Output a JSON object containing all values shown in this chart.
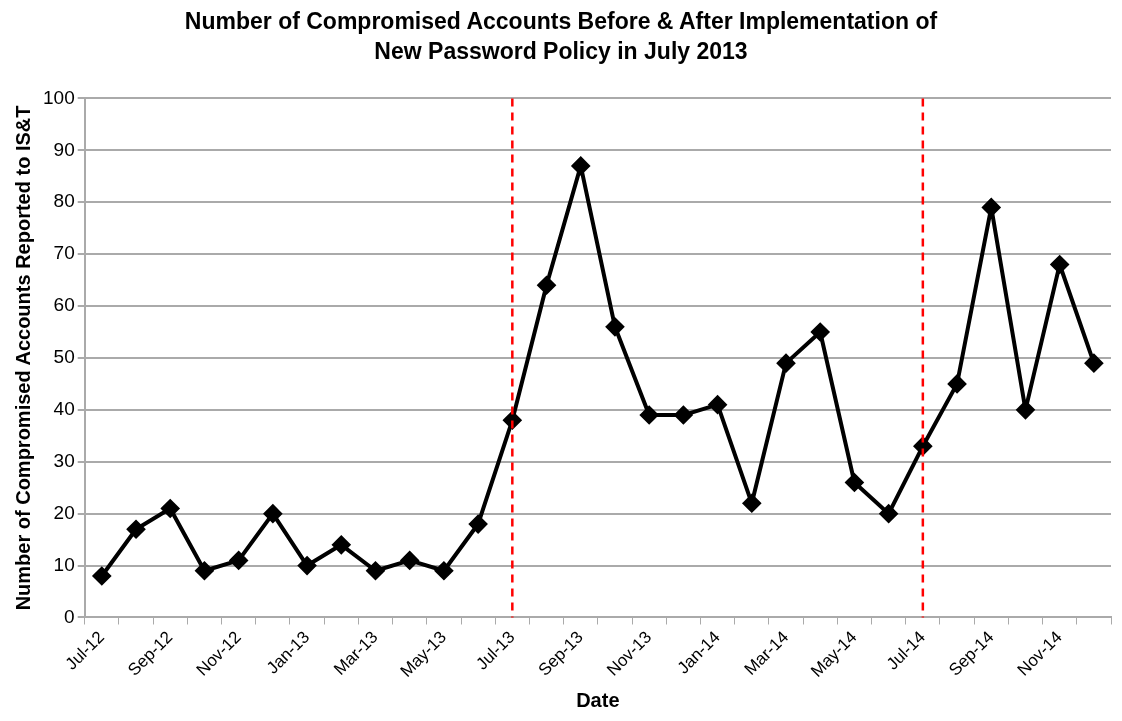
{
  "chart_data": {
    "type": "line",
    "title": "Number of Compromised Accounts Before & After Implementation of New Password Policy in July 2013",
    "xlabel": "Date",
    "ylabel": "Number of Compromised Accounts Reported to IS&T",
    "categories": [
      "Jul-12",
      null,
      "Sep-12",
      null,
      "Nov-12",
      null,
      "Jan-13",
      null,
      "Mar-13",
      null,
      "May-13",
      null,
      "Jul-13",
      null,
      "Sep-13",
      null,
      "Nov-13",
      null,
      "Jan-14",
      null,
      "Mar-14",
      null,
      "May-14",
      null,
      "Jul-14",
      null,
      "Sep-14",
      null,
      "Nov-14",
      null
    ],
    "series": [
      {
        "color": "#000000",
        "values": [
          8,
          17,
          21,
          9,
          11,
          20,
          10,
          14,
          9,
          11,
          9,
          18,
          38,
          64,
          87,
          56,
          39,
          39,
          41,
          22,
          49,
          55,
          26,
          20,
          33,
          45,
          79,
          40,
          68,
          49
        ]
      }
    ],
    "ylim": [
      0,
      100
    ],
    "yticks": [
      0,
      10,
      20,
      30,
      40,
      50,
      60,
      70,
      80,
      90,
      100
    ],
    "grid": "y",
    "legend": false,
    "marker": "diamond",
    "line_style": "solid",
    "ref_lines": [
      {
        "axis": "x",
        "value": "Jul-13",
        "color": "#ff0000",
        "line_style": "dashed"
      },
      {
        "axis": "x",
        "value": "Jul-14",
        "color": "#ff0000",
        "line_style": "dashed"
      }
    ]
  }
}
